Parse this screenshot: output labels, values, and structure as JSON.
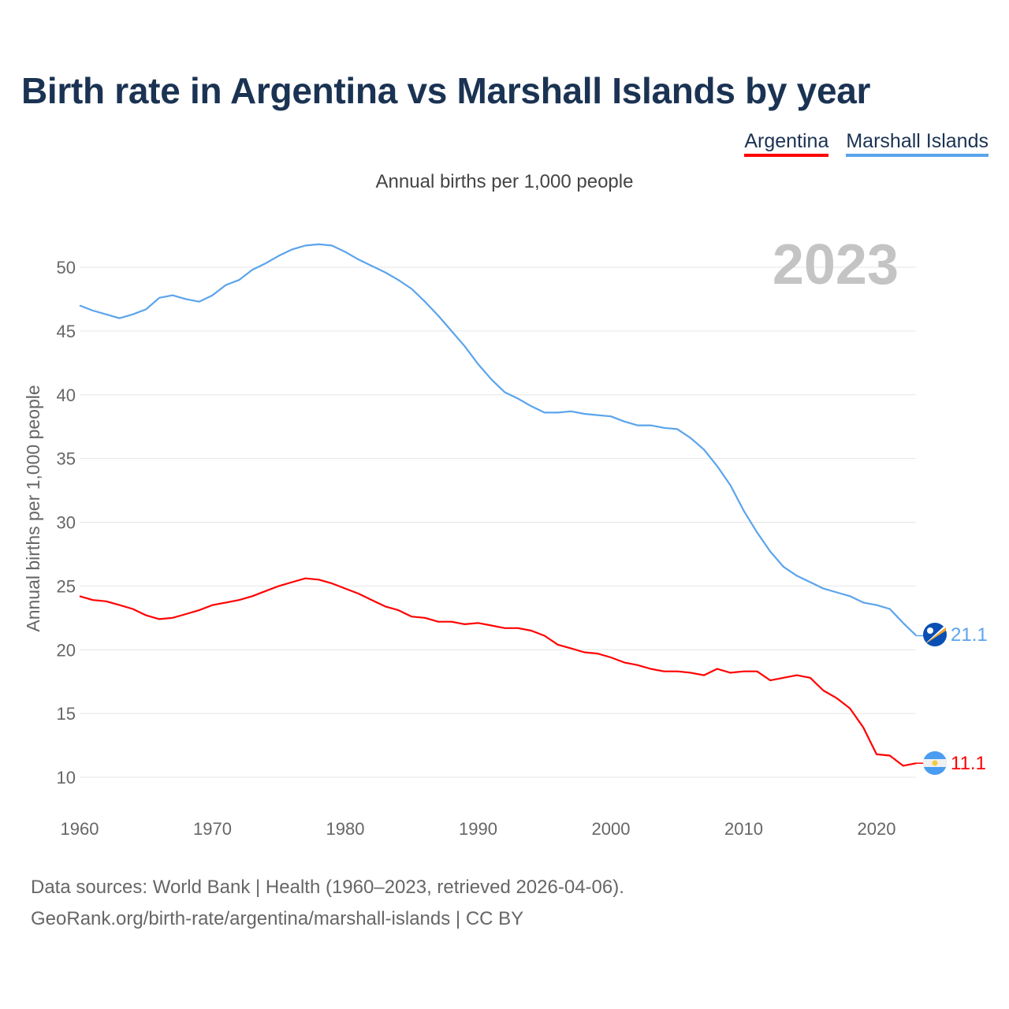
{
  "title": "Birth rate in Argentina vs Marshall Islands by year",
  "subtitle": "Annual births per 1,000 people",
  "year_watermark": "2023",
  "source_line1": "Data sources: World Bank | Health (1960–2023, retrieved 2026-04-06).",
  "source_line2": "GeoRank.org/birth-rate/argentina/marshall-islands | CC BY",
  "chart_data": {
    "type": "line",
    "title": "Birth rate in Argentina vs Marshall Islands by year",
    "xlabel": "",
    "ylabel": "Annual births per 1,000 people",
    "xlim": [
      1960,
      2023
    ],
    "ylim": [
      8,
      53
    ],
    "x_ticks": [
      1960,
      1970,
      1980,
      1990,
      2000,
      2010,
      2020
    ],
    "y_ticks": [
      10,
      15,
      20,
      25,
      30,
      35,
      40,
      45,
      50
    ],
    "grid": true,
    "legend_position": "top-right",
    "x_start": 1960,
    "series": [
      {
        "name": "Argentina",
        "color": "#ff0000",
        "end_label": "11.1",
        "values": [
          24.2,
          23.9,
          23.8,
          23.5,
          23.2,
          22.7,
          22.4,
          22.5,
          22.8,
          23.1,
          23.5,
          23.7,
          23.9,
          24.2,
          24.6,
          25.0,
          25.3,
          25.6,
          25.5,
          25.2,
          24.8,
          24.4,
          23.9,
          23.4,
          23.1,
          22.6,
          22.5,
          22.2,
          22.2,
          22.0,
          22.1,
          21.9,
          21.7,
          21.7,
          21.5,
          21.1,
          20.4,
          20.1,
          19.8,
          19.7,
          19.4,
          19.0,
          18.8,
          18.5,
          18.3,
          18.3,
          18.2,
          18.0,
          18.5,
          18.2,
          18.3,
          18.3,
          17.6,
          17.8,
          18.0,
          17.8,
          16.8,
          16.2,
          15.4,
          13.9,
          11.8,
          11.7,
          10.9,
          11.1
        ]
      },
      {
        "name": "Marshall Islands",
        "color": "#5ba4ec",
        "end_label": "21.1",
        "values": [
          47.0,
          46.6,
          46.3,
          46.0,
          46.3,
          46.7,
          47.6,
          47.8,
          47.5,
          47.3,
          47.8,
          48.6,
          49.0,
          49.8,
          50.3,
          50.9,
          51.4,
          51.7,
          51.8,
          51.7,
          51.2,
          50.6,
          50.1,
          49.6,
          49.0,
          48.3,
          47.3,
          46.2,
          45.0,
          43.8,
          42.4,
          41.2,
          40.2,
          39.7,
          39.1,
          38.6,
          38.6,
          38.7,
          38.5,
          38.4,
          38.3,
          37.9,
          37.6,
          37.6,
          37.4,
          37.3,
          36.6,
          35.7,
          34.4,
          32.9,
          30.9,
          29.2,
          27.7,
          26.5,
          25.8,
          25.3,
          24.8,
          24.5,
          24.2,
          23.7,
          23.5,
          23.2,
          22.1,
          21.1
        ]
      }
    ]
  }
}
